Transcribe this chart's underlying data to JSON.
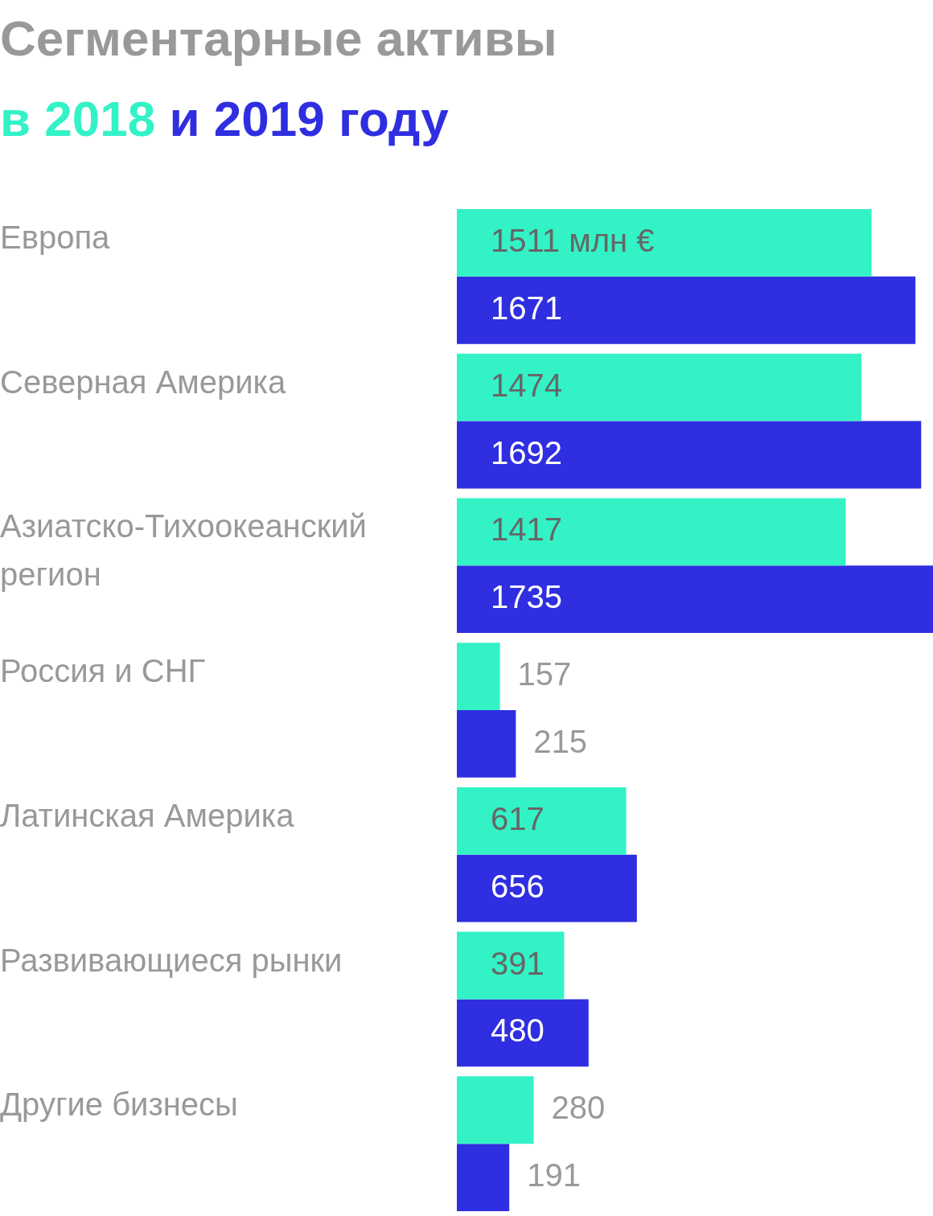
{
  "chart_data": {
    "type": "bar",
    "orientation": "horizontal",
    "title": "Сегментарные активы",
    "subtitle": "в 2018 и 2019 году",
    "categories": [
      "Европа",
      "Северная Америка",
      "Азиатско-Тихоокеанский регион",
      "Россия и СНГ",
      "Латинская Америка",
      "Развивающиеся рынки",
      "Другие бизнесы"
    ],
    "series": [
      {
        "color": "#33f2c6",
        "values": [
          1511,
          1474,
          1417,
          157,
          617,
          391,
          280
        ],
        "value_labels": [
          "1511 млн €",
          "1474",
          "1417",
          "157",
          "617",
          "391",
          "280"
        ]
      },
      {
        "color": "#2f2ee0",
        "values": [
          1671,
          1692,
          1735,
          215,
          656,
          480,
          191
        ],
        "value_labels": [
          "1671",
          "1692",
          "1735",
          "215",
          "656",
          "480",
          "191"
        ]
      }
    ]
  }
}
